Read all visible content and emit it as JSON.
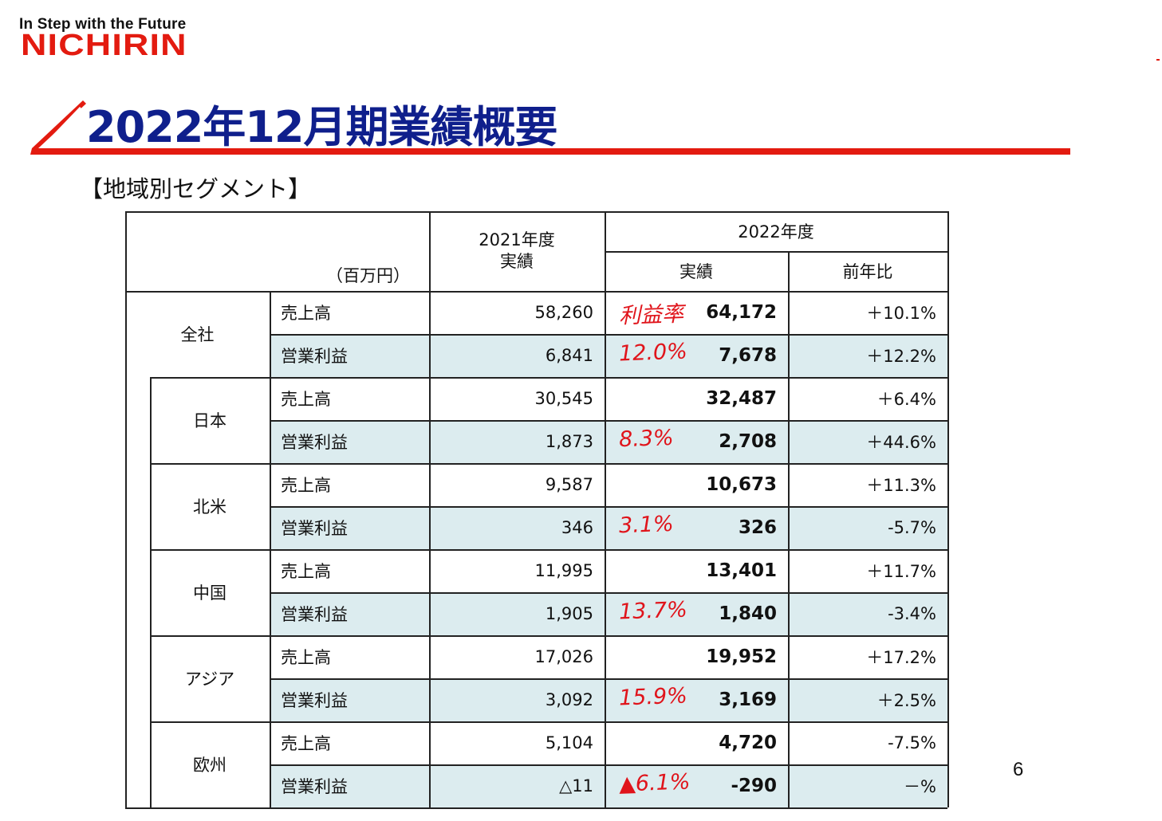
{
  "logo": {
    "tagline": "In Step with the Future",
    "brand": "NICHIRIN",
    "brand_color": "#e31b10"
  },
  "title": "2022年12月期業績概要",
  "title_color": "#0f1f8c",
  "section_heading": "【地域別セグメント】",
  "page_number": "6",
  "table": {
    "unit_label": "（百万円）",
    "col_2021": {
      "line1": "2021年度",
      "line2": "実績"
    },
    "col_2022_group": "2022年度",
    "col_2022_actual": "実績",
    "col_yoy": "前年比",
    "rows": [
      {
        "region": "全社",
        "sales": {
          "label": "売上高",
          "y2021": "58,260",
          "y2022": "64,172",
          "yoy": "＋10.1%",
          "note": "利益率"
        },
        "profit": {
          "label": "営業利益",
          "y2021": "6,841",
          "y2022": "7,678",
          "yoy": "＋12.2%",
          "note": "12.0%"
        }
      },
      {
        "region": "日本",
        "sales": {
          "label": "売上高",
          "y2021": "30,545",
          "y2022": "32,487",
          "yoy": "＋6.4%",
          "note": ""
        },
        "profit": {
          "label": "営業利益",
          "y2021": "1,873",
          "y2022": "2,708",
          "yoy": "＋44.6%",
          "note": "8.3%"
        }
      },
      {
        "region": "北米",
        "sales": {
          "label": "売上高",
          "y2021": "9,587",
          "y2022": "10,673",
          "yoy": "＋11.3%",
          "note": ""
        },
        "profit": {
          "label": "営業利益",
          "y2021": "346",
          "y2022": "326",
          "yoy": "-5.7%",
          "note": "3.1%"
        }
      },
      {
        "region": "中国",
        "sales": {
          "label": "売上高",
          "y2021": "11,995",
          "y2022": "13,401",
          "yoy": "＋11.7%",
          "note": ""
        },
        "profit": {
          "label": "営業利益",
          "y2021": "1,905",
          "y2022": "1,840",
          "yoy": "-3.4%",
          "note": "13.7%"
        }
      },
      {
        "region": "アジア",
        "sales": {
          "label": "売上高",
          "y2021": "17,026",
          "y2022": "19,952",
          "yoy": "＋17.2%",
          "note": ""
        },
        "profit": {
          "label": "営業利益",
          "y2021": "3,092",
          "y2022": "3,169",
          "yoy": "＋2.5%",
          "note": "15.9%"
        }
      },
      {
        "region": "欧州",
        "sales": {
          "label": "売上高",
          "y2021": "5,104",
          "y2022": "4,720",
          "yoy": "-7.5%",
          "note": ""
        },
        "profit": {
          "label": "営業利益",
          "y2021": "△11",
          "y2022": "-290",
          "yoy": "－%",
          "note": "▲6.1%"
        }
      }
    ]
  },
  "annotation_color": "#e0141b"
}
